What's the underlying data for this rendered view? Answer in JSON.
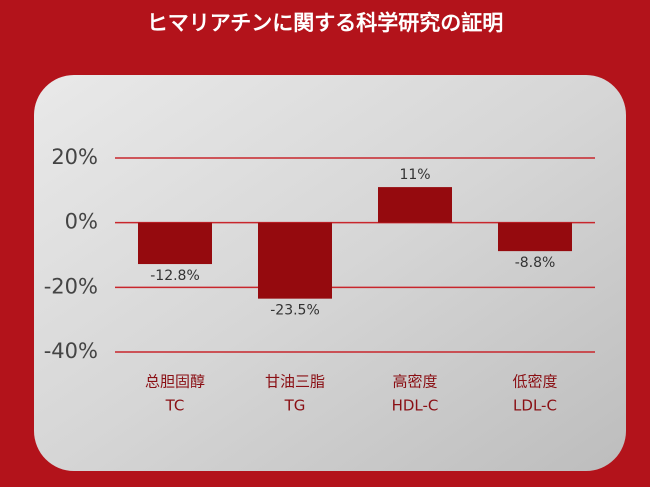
{
  "chart_data": {
    "type": "bar",
    "title": "ヒマリアチンに関する科学研究の証明",
    "categories": [
      [
        "总胆固醇",
        "TC"
      ],
      [
        "甘油三脂",
        "TG"
      ],
      [
        "高密度",
        "HDL-C"
      ],
      [
        "低密度",
        "LDL-C"
      ]
    ],
    "values": [
      -12.8,
      -23.5,
      11,
      -8.8
    ],
    "value_labels": [
      "-12.8%",
      "-23.5%",
      "11%",
      "-8.8%"
    ],
    "color": "#950a0e",
    "ylim": [
      -40,
      20
    ],
    "yticks": [
      {
        "value": 20,
        "label": "20%"
      },
      {
        "value": 0,
        "label": "0%"
      },
      {
        "value": -20,
        "label": "-20%"
      },
      {
        "value": -40,
        "label": "-40%"
      }
    ],
    "grid": true
  }
}
